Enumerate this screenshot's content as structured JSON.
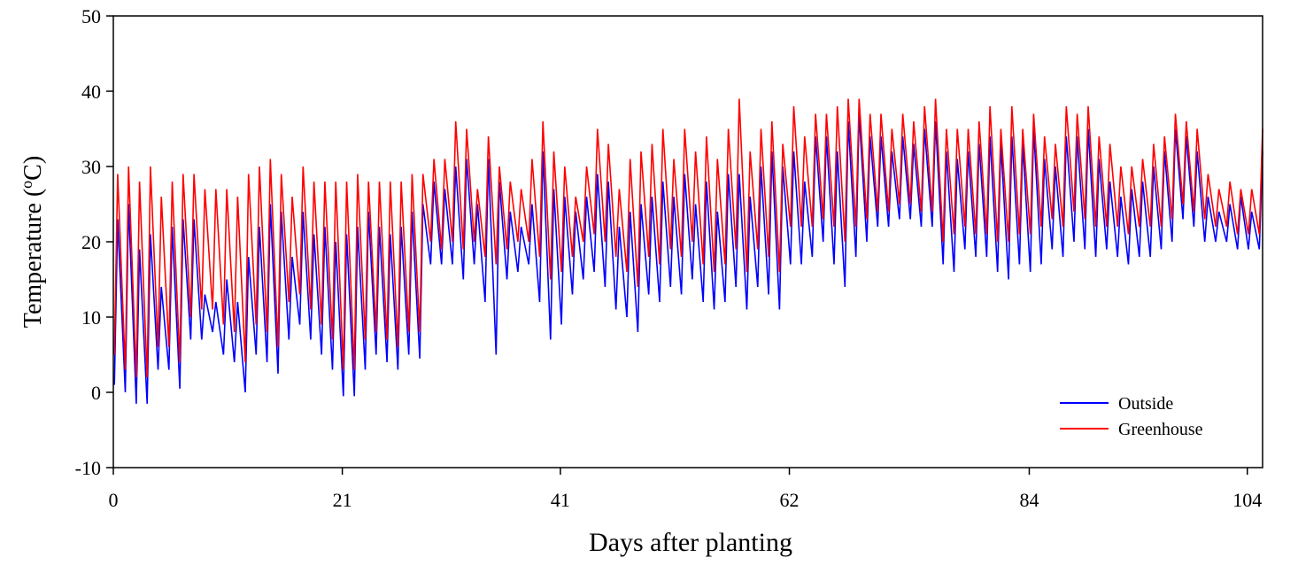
{
  "chart_data": {
    "type": "line",
    "xlabel": "Days after planting",
    "ylabel": [
      "Temperature (",
      "o",
      "C)"
    ],
    "xlim": [
      0,
      105.4
    ],
    "ylim": [
      -10,
      50
    ],
    "xticks": [
      0,
      21,
      41,
      62,
      84,
      104
    ],
    "yticks": [
      -10,
      0,
      10,
      20,
      30,
      40,
      50
    ],
    "legend": "lower right",
    "x": [
      0.1,
      0.4,
      1.1,
      1.4,
      2.1,
      2.4,
      3.1,
      3.4,
      4.1,
      4.4,
      5.1,
      5.4,
      6.1,
      6.4,
      7.1,
      7.4,
      8.1,
      8.4,
      9.1,
      9.4,
      10.1,
      10.4,
      11.1,
      11.4,
      12.1,
      12.4,
      13.1,
      13.4,
      14.1,
      14.4,
      15.1,
      15.4,
      16.1,
      16.4,
      17.1,
      17.4,
      18.1,
      18.4,
      19.1,
      19.4,
      20.1,
      20.4,
      21.1,
      21.4,
      22.1,
      22.4,
      23.1,
      23.4,
      24.1,
      24.4,
      25.1,
      25.4,
      26.1,
      26.4,
      27.1,
      27.4,
      28.1,
      28.4,
      29.1,
      29.4,
      30.1,
      30.4,
      31.1,
      31.4,
      32.1,
      32.4,
      33.1,
      33.4,
      34.1,
      34.4,
      35.1,
      35.4,
      36.1,
      36.4,
      37.1,
      37.4,
      38.1,
      38.4,
      39.1,
      39.4,
      40.1,
      40.4,
      41.1,
      41.4,
      42.1,
      42.4,
      43.1,
      43.4,
      44.1,
      44.4,
      45.1,
      45.4,
      46.1,
      46.4,
      47.1,
      47.4,
      48.1,
      48.4,
      49.1,
      49.4,
      50.1,
      50.4,
      51.1,
      51.4,
      52.1,
      52.4,
      53.1,
      53.4,
      54.1,
      54.4,
      55.1,
      55.4,
      56.1,
      56.4,
      57.1,
      57.4,
      58.1,
      58.4,
      59.1,
      59.4,
      60.1,
      60.4,
      61.1,
      61.4,
      62.1,
      62.4,
      63.1,
      63.4,
      64.1,
      64.4,
      65.1,
      65.4,
      66.1,
      66.4,
      67.1,
      67.4,
      68.1,
      68.4,
      69.1,
      69.4,
      70.1,
      70.4,
      71.1,
      71.4,
      72.1,
      72.4,
      73.1,
      73.4,
      74.1,
      74.4,
      75.1,
      75.4,
      76.1,
      76.4,
      77.1,
      77.4,
      78.1,
      78.4,
      79.1,
      79.4,
      80.1,
      80.4,
      81.1,
      81.4,
      82.1,
      82.4,
      83.1,
      83.4,
      84.1,
      84.4,
      85.1,
      85.4,
      86.1,
      86.4,
      87.1,
      87.4,
      88.1,
      88.4,
      89.1,
      89.4,
      90.1,
      90.4,
      91.1,
      91.4,
      92.1,
      92.4,
      93.1,
      93.4,
      94.1,
      94.4,
      95.1,
      95.4,
      96.1,
      96.4,
      97.1,
      97.4,
      98.1,
      98.4,
      99.1,
      99.4,
      100.1,
      100.4,
      101.1,
      101.4,
      102.1,
      102.4,
      103.1,
      103.4,
      104.1,
      104.4,
      105.1,
      105.4
    ],
    "series": [
      {
        "name": "Outside",
        "color": "#0000ff",
        "values": [
          1,
          23,
          0,
          25,
          -1.5,
          19,
          -1.5,
          21,
          3,
          14,
          3,
          22,
          0.5,
          23,
          7,
          23,
          7,
          13,
          8,
          12,
          5,
          15,
          4,
          12,
          0,
          18,
          5,
          22,
          4,
          25,
          2.5,
          24,
          7,
          18,
          9,
          24,
          7,
          21,
          5,
          22,
          3,
          20,
          -0.5,
          21,
          -0.5,
          22,
          3,
          24,
          5,
          22,
          4,
          21,
          3,
          22,
          5,
          24,
          4.5,
          25,
          17,
          28,
          17,
          27,
          17,
          30,
          15,
          31,
          17,
          25,
          12,
          31,
          5,
          28,
          15,
          24,
          16,
          22,
          17,
          25,
          12,
          32,
          7,
          27,
          9,
          26,
          13,
          24,
          15,
          26,
          16,
          29,
          14,
          28,
          11,
          22,
          10,
          24,
          8,
          25,
          13,
          26,
          12,
          28,
          14,
          26,
          13,
          29,
          15,
          25,
          12,
          28,
          11,
          24,
          12,
          29,
          14,
          29,
          11,
          26,
          14,
          30,
          13,
          32,
          11,
          30,
          17,
          32,
          17,
          28,
          18,
          34,
          20,
          34,
          17,
          32,
          14,
          36,
          18,
          37,
          20,
          34,
          22,
          34,
          22,
          32,
          23,
          34,
          23,
          33,
          22,
          35,
          22,
          36,
          17,
          32,
          16,
          31,
          19,
          32,
          18,
          33,
          18,
          34,
          16,
          33,
          15,
          34,
          17,
          33,
          16,
          35,
          17,
          31,
          19,
          30,
          18,
          34,
          20,
          34,
          19,
          35,
          18,
          31,
          19,
          28,
          18,
          26,
          17,
          27,
          18,
          28,
          18,
          30,
          19,
          32,
          20,
          35,
          23,
          34,
          22,
          32,
          20,
          26,
          20,
          24,
          20,
          25,
          19,
          26,
          19,
          24,
          19,
          32
        ]
      },
      {
        "name": "Greenhouse",
        "color": "#ff0000",
        "values": [
          5,
          29,
          3,
          30,
          2,
          28,
          2,
          30,
          6,
          26,
          6,
          28,
          4,
          29,
          10,
          29,
          11,
          27,
          11,
          27,
          9,
          27,
          8,
          26,
          4,
          29,
          9,
          30,
          8,
          31,
          6,
          29,
          12,
          26,
          13,
          30,
          11,
          28,
          9,
          28,
          7,
          28,
          3,
          28,
          3,
          29,
          7,
          28,
          8,
          28,
          7,
          28,
          6,
          28,
          8,
          29,
          8,
          29,
          20,
          31,
          19,
          31,
          20,
          36,
          19,
          35,
          20,
          27,
          18,
          34,
          17,
          30,
          19,
          28,
          20,
          27,
          20,
          31,
          18,
          36,
          15,
          32,
          16,
          30,
          18,
          26,
          20,
          30,
          21,
          35,
          20,
          33,
          18,
          27,
          16,
          31,
          14,
          32,
          18,
          33,
          17,
          35,
          19,
          31,
          18,
          35,
          20,
          32,
          17,
          34,
          16,
          31,
          17,
          35,
          19,
          39,
          16,
          32,
          19,
          35,
          18,
          36,
          16,
          33,
          22,
          38,
          22,
          34,
          22,
          37,
          23,
          37,
          22,
          38,
          20,
          39,
          22,
          39,
          23,
          37,
          24,
          37,
          24,
          35,
          25,
          37,
          25,
          36,
          24,
          38,
          24,
          39,
          20,
          35,
          21,
          35,
          22,
          35,
          21,
          36,
          21,
          38,
          20,
          35,
          20,
          38,
          21,
          35,
          21,
          37,
          22,
          34,
          23,
          33,
          22,
          38,
          24,
          37,
          23,
          38,
          22,
          34,
          22,
          33,
          22,
          30,
          21,
          30,
          22,
          31,
          22,
          33,
          22,
          34,
          23,
          37,
          25,
          36,
          24,
          35,
          23,
          29,
          22,
          27,
          22,
          28,
          21,
          27,
          21,
          27,
          21,
          35
        ]
      }
    ]
  }
}
